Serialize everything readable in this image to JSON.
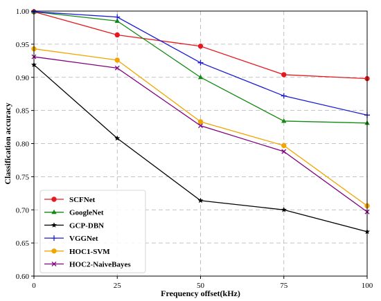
{
  "chart_data": {
    "type": "line",
    "xlabel": "Frequency offset(kHz)",
    "ylabel": "Classification accuracy",
    "x": [
      0,
      25,
      50,
      75,
      100
    ],
    "xticks": [
      "0",
      "25",
      "50",
      "75",
      "100"
    ],
    "xlim": [
      0,
      100
    ],
    "yticks": [
      "0.60",
      "0.65",
      "0.70",
      "0.75",
      "0.80",
      "0.85",
      "0.90",
      "0.95",
      "1.00"
    ],
    "ylim": [
      0.6,
      1.0
    ],
    "grid": true,
    "legend_position": "bottom-left",
    "series": [
      {
        "name": "SCFNet",
        "color": "#e6191e",
        "marker": "circle",
        "values": [
          0.999,
          0.964,
          0.947,
          0.904,
          0.898
        ]
      },
      {
        "name": "GoogleNet",
        "color": "#118a11",
        "marker": "triangle",
        "values": [
          0.999,
          0.985,
          0.9,
          0.834,
          0.831
        ]
      },
      {
        "name": "GCP-DBN",
        "color": "#000000",
        "marker": "star",
        "values": [
          0.919,
          0.808,
          0.714,
          0.7,
          0.667
        ]
      },
      {
        "name": "VGGNet",
        "color": "#1a1ad6",
        "marker": "plus",
        "values": [
          0.999,
          0.991,
          0.922,
          0.872,
          0.843
        ]
      },
      {
        "name": "HOC1-SVM",
        "color": "#f0a500",
        "marker": "circle",
        "values": [
          0.943,
          0.926,
          0.833,
          0.797,
          0.706
        ]
      },
      {
        "name": "HOC2-NaiveBayes",
        "color": "#800080",
        "marker": "x",
        "values": [
          0.931,
          0.914,
          0.827,
          0.788,
          0.697
        ]
      }
    ]
  }
}
